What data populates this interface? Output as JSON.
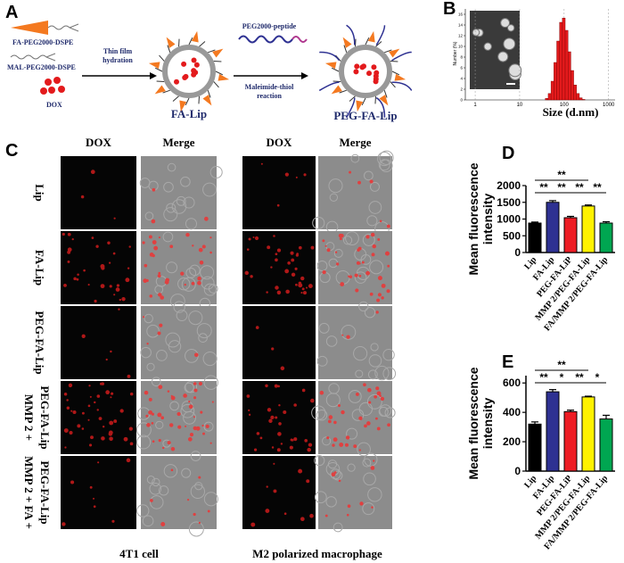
{
  "panels": {
    "a": {
      "label": "A",
      "fa_peg": "FA-PEG2000-DSPE",
      "mal_peg": "MAL-PEG2000-DSPE",
      "dox": "DOX",
      "step1": [
        "Thin film",
        "hydration"
      ],
      "fa_lip": "FA-Lip",
      "peptide": "PEG2000-peptide",
      "step2": [
        "Maleimide-thiol",
        "reaction"
      ],
      "peg_fa_lip": "PEG-FA-Lip"
    },
    "c": {
      "label": "C",
      "columns": [
        "DOX",
        "Merge",
        "DOX",
        "Merge"
      ],
      "rows": [
        [
          "Lip"
        ],
        [
          "FA-Lip"
        ],
        [
          "PEG-FA-Lip"
        ],
        [
          "MMP 2 +",
          "PEG-FA-Lip"
        ],
        [
          "MMP 2 + FA +",
          "PEG-FA-Lip"
        ]
      ],
      "captions": [
        "4T1 cell",
        "M2 polarized macrophage"
      ]
    }
  },
  "chart_data": [
    {
      "type": "histogram",
      "panel_label": "B",
      "xlabel": "Size (d.nm)",
      "ylabel": "Number (%)",
      "color": "#e31a1c",
      "log_x": true,
      "bins": [
        37.8,
        43.8,
        50.7,
        58.8,
        68.1,
        78.8,
        91.3,
        105.7,
        122.4,
        141.8,
        164.2,
        190.1,
        220.2,
        255.0,
        295.3
      ],
      "values": [
        0.3,
        1.2,
        3.5,
        7,
        11,
        14.5,
        15.3,
        13,
        9,
        5.5,
        2.8,
        1.2,
        0.4,
        0.1
      ],
      "xlim": [
        0.6,
        1400
      ],
      "xticks": [
        1,
        10,
        100,
        1000
      ],
      "ylim": [
        0,
        17
      ],
      "yticks": [
        0,
        2,
        4,
        6,
        8,
        10,
        12,
        14,
        16
      ]
    },
    {
      "type": "bar",
      "panel_label": "D",
      "ylabel": [
        "Mean fluorescence",
        "intensity"
      ],
      "categories": [
        "Lip",
        "FA-Lip",
        "PEG-FA-LiP",
        "MMP 2/PEG-FA-Lip",
        "FA/MMP 2/PEG-FA-Lip"
      ],
      "values": [
        880,
        1500,
        1040,
        1390,
        880
      ],
      "errors": [
        30,
        50,
        40,
        30,
        40
      ],
      "colors": [
        "#000000",
        "#2e3192",
        "#ed1c24",
        "#fff200",
        "#00a651"
      ],
      "ylim": [
        0,
        2000
      ],
      "yticks": [
        0,
        500,
        1000,
        1500,
        2000
      ],
      "significance": [
        "**",
        "**",
        "**",
        "**",
        "**"
      ]
    },
    {
      "type": "bar",
      "panel_label": "E",
      "ylabel": [
        "Mean fluorescence",
        "intensity"
      ],
      "categories": [
        "Lip",
        "FA-Lip",
        "PEG-FA-LiP",
        "MMP 2/PEG-FA-Lip",
        "FA/MMP 2/PEG-FA-Lip"
      ],
      "values": [
        320,
        540,
        405,
        505,
        355
      ],
      "errors": [
        15,
        15,
        10,
        5,
        25
      ],
      "colors": [
        "#000000",
        "#2e3192",
        "#ed1c24",
        "#fff200",
        "#00a651"
      ],
      "ylim": [
        0,
        650
      ],
      "yticks": [
        0,
        200,
        400,
        600
      ],
      "significance": [
        "**",
        "**",
        "*",
        "**",
        "*"
      ]
    }
  ]
}
